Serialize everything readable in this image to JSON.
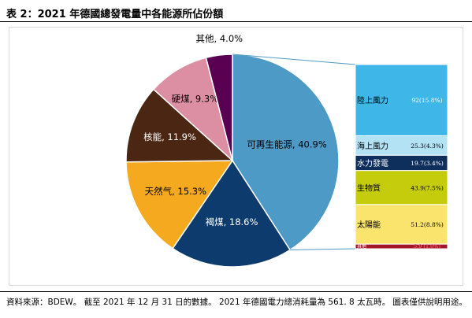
{
  "header": {
    "title": "表 2：2021 年德國總發電量中各能源所佔份額"
  },
  "chart_data": {
    "type": "pie",
    "title": "",
    "slices": [
      {
        "name": "可再生能源",
        "value": 40.9,
        "label": "可再生能源, 40.9%",
        "color": "#4e9ac6"
      },
      {
        "name": "褐煤",
        "value": 18.6,
        "label": "褐煤, 18.6%",
        "color": "#0d3b6e"
      },
      {
        "name": "天然气",
        "value": 15.3,
        "label": "天然气, 15.3%",
        "color": "#f5a91e"
      },
      {
        "name": "核能",
        "value": 11.9,
        "label": "核能, 11.9%",
        "color": "#4b2612"
      },
      {
        "name": "硬煤",
        "value": 9.3,
        "label": "硬煤, 9.3%",
        "color": "#dc8fa3"
      },
      {
        "name": "其他",
        "value": 4.0,
        "label": "其他, 4.0%",
        "color": "#5a0052"
      }
    ],
    "breakdown": {
      "type": "bar",
      "of": "可再生能源",
      "segments": [
        {
          "name": "陸上風力",
          "value": 92,
          "percent": 15.8,
          "value_label": "92(15.8%)",
          "color": "#3eb6e8",
          "text_color": "#000000",
          "value_color": "#ffffff"
        },
        {
          "name": "海上風力",
          "value": 25.3,
          "percent": 4.3,
          "value_label": "25.3(4.3%)",
          "color": "#b3e2f5",
          "text_color": "#000000",
          "value_color": "#000000"
        },
        {
          "name": "水力發電",
          "value": 19.7,
          "percent": 3.4,
          "value_label": "19.7(3.4%)",
          "color": "#0e2f5c",
          "text_color": "#ffffff",
          "value_color": "#ffffff"
        },
        {
          "name": "生物質",
          "value": 43.9,
          "percent": 7.5,
          "value_label": "43.9(7.5%)",
          "color": "#c5cc0b",
          "text_color": "#000000",
          "value_color": "#000000"
        },
        {
          "name": "太陽能",
          "value": 51.2,
          "percent": 8.8,
          "value_label": "51.2(8.8%)",
          "color": "#fbe46e",
          "text_color": "#000000",
          "value_color": "#000000"
        },
        {
          "name": "其他",
          "value": 5.9,
          "percent": 1.0,
          "value_label": "5.9 (1.0%)",
          "color": "#a3162a",
          "text_color": "#ffffff",
          "value_color": "#ff7a7a"
        }
      ]
    }
  },
  "footer": {
    "source": "資料來源：BDEW。 截至 2021 年 12 月 31 日的數據。 2021 年德國電力總消耗量為 561. 8 太瓦時。 圖表僅供說明用途。"
  }
}
